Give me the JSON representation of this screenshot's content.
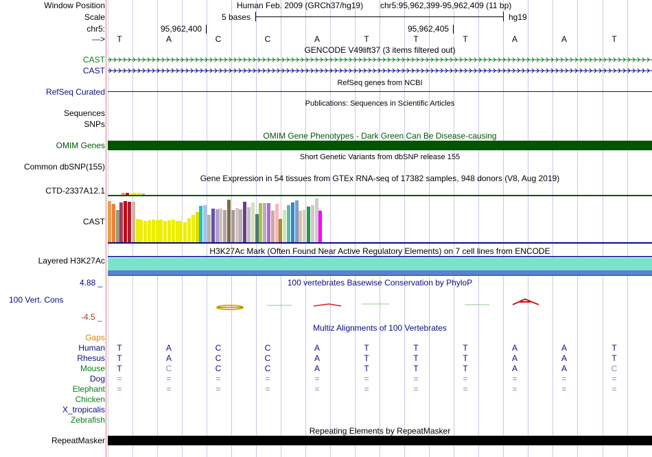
{
  "header": {
    "window_position_label": "Window Position",
    "genome_info": "Human Feb. 2009 (GRCh37/hg19)",
    "position": "chr5:95,962,399-95,962,409 (11 bp)",
    "scale_label": "Scale",
    "scale_value": "5 bases",
    "assembly": "hg19",
    "chrom_label": "chr5:",
    "coord_1": "95,962,400",
    "coord_2": "95,962,405",
    "strand_label": "--->"
  },
  "bases": [
    "T",
    "A",
    "C",
    "C",
    "A",
    "T",
    "T",
    "T",
    "A",
    "A",
    "T"
  ],
  "tracks": {
    "gencode_title": "GENCODE V49lift37 (3 items filtered out)",
    "gencode_items": [
      "CAST",
      "CAST"
    ],
    "refseq_label": "RefSeq Curated",
    "refseq_title": "RefSeq genes from NCBI",
    "pubs_label": "Sequences",
    "pubs_title": "Publications: Sequences in Scientific Articles",
    "snps_label": "SNPs",
    "omim_title": "OMIM Gene Phenotypes - Dark Green Can Be Disease-causing",
    "omim_label": "OMIM Genes",
    "dbsnp_title": "Short Genetic Variants from dbSNP release 155",
    "dbsnp_label": "Common dbSNP(155)",
    "gtex_title": "Gene Expression in 54 tissues from GTEx RNA-seq of 17382 samples, 948 donors (V8, Aug 2019)",
    "gtex_items": [
      "CTD-2337A12.1",
      "CAST"
    ],
    "h3k27_title": "H3K27Ac Mark (Often Found Near Active Regulatory Elements) on 7 cell lines from ENCODE",
    "h3k27_label": "Layered H3K27Ac",
    "phylop_title": "100 vertebrates Basewise Conservation by PhyloP",
    "phylop_label": "100 Vert. Cons",
    "phylop_max": "4.88 _",
    "phylop_min": "-4.5 _",
    "multiz_title": "Multiz Alignments of 100 Vertebrates",
    "gaps_label": "Gaps",
    "repeat_title": "Repeating Elements by RepeatMasker",
    "repeat_label": "RepeatMasker"
  },
  "species": [
    {
      "name": "Human",
      "bases": [
        "T",
        "A",
        "C",
        "C",
        "A",
        "T",
        "T",
        "T",
        "A",
        "A",
        "T"
      ]
    },
    {
      "name": "Rhesus",
      "bases": [
        "T",
        "A",
        "C",
        "C",
        "A",
        "T",
        "T",
        "T",
        "A",
        "A",
        "T"
      ]
    },
    {
      "name": "Mouse",
      "bases": [
        "T",
        "C",
        "C",
        "C",
        "A",
        "T",
        "T",
        "T",
        "A",
        "A",
        "C"
      ]
    },
    {
      "name": "Dog",
      "bases": [
        "=",
        "=",
        "=",
        "=",
        "=",
        "=",
        "=",
        "=",
        "=",
        "=",
        "="
      ]
    },
    {
      "name": "Elephant",
      "bases": [
        "=",
        "=",
        "=",
        "=",
        "=",
        "=",
        "=",
        "=",
        "=",
        "=",
        "="
      ]
    },
    {
      "name": "Chicken",
      "bases": [
        "",
        "",
        "",
        "",
        "",
        "",
        "",
        "",
        "",
        "",
        ""
      ]
    },
    {
      "name": "X_tropicalis",
      "bases": [
        "",
        "",
        "",
        "",
        "",
        "",
        "",
        "",
        "",
        "",
        ""
      ]
    },
    {
      "name": "Zebrafish",
      "bases": [
        "",
        "",
        "",
        "",
        "",
        "",
        "",
        "",
        "",
        "",
        ""
      ]
    }
  ],
  "gtex_tissues": {
    "colors": [
      "#f49b4a",
      "#e8833c",
      "#9a9d73",
      "#9b3c6a",
      "#cc0000",
      "#ab1b34",
      "#cfb5a1",
      "#eeee00",
      "#eeee00",
      "#eeee00",
      "#eeee00",
      "#eeee00",
      "#eeee00",
      "#eeee00",
      "#eeee00",
      "#eeee00",
      "#eeee00",
      "#eeee00",
      "#eeee00",
      "#eeee00",
      "#eeee00",
      "#eeee00",
      "#dddd00",
      "#23c1c1",
      "#a4c2ec",
      "#b3b3b3",
      "#6a4fa1",
      "#aaa1da",
      "#d7c1b0",
      "#b4a5a0",
      "#7b6b4d",
      "#a49c91",
      "#d6c2c4",
      "#b4b4b4",
      "#6c3c8c",
      "#c0c0c0",
      "#d2e1bb",
      "#4d7a7e",
      "#9eca3a",
      "#c9a0c9",
      "#a86fbf",
      "#d0a4a8",
      "#ffb4b4",
      "#a58d2b",
      "#c7e8b5",
      "#60b7b0",
      "#2f87c8",
      "#7a9cd0",
      "#e0c0a0",
      "#d8cdc6",
      "#1e9a55",
      "#d3c6c4",
      "#cccccc",
      "#ff00ff"
    ],
    "values": [
      60,
      56,
      47,
      58,
      60,
      59,
      59,
      34,
      33,
      31,
      32,
      33,
      32,
      33,
      31,
      32,
      33,
      31,
      31,
      29,
      35,
      40,
      44,
      53,
      54,
      40,
      49,
      48,
      49,
      47,
      62,
      47,
      50,
      48,
      59,
      51,
      58,
      41,
      57,
      57,
      57,
      46,
      56,
      34,
      47,
      54,
      58,
      61,
      46,
      47,
      52,
      54,
      64,
      46
    ],
    "ctd_values": [
      3,
      3,
      2,
      3,
      3,
      2,
      0,
      0,
      0,
      0,
      0,
      0,
      0,
      0,
      0,
      0,
      0,
      0,
      0,
      0,
      0,
      0,
      0,
      0,
      0,
      0,
      0,
      0,
      0,
      0,
      0,
      0,
      0,
      0,
      0,
      0,
      0,
      0,
      0,
      0,
      0,
      0,
      0,
      0,
      0,
      0,
      0,
      0,
      0,
      0,
      0,
      0,
      0,
      0
    ]
  },
  "colors": {
    "gencode_green": "#087e17",
    "omim_green": "#005500",
    "navy": "#0b0b80",
    "h3k27_teal": "#7de2cc",
    "h3k27_blue": "#5a82d2",
    "gaps_orange": "#e08000",
    "phylop_red": "#aa3322"
  }
}
